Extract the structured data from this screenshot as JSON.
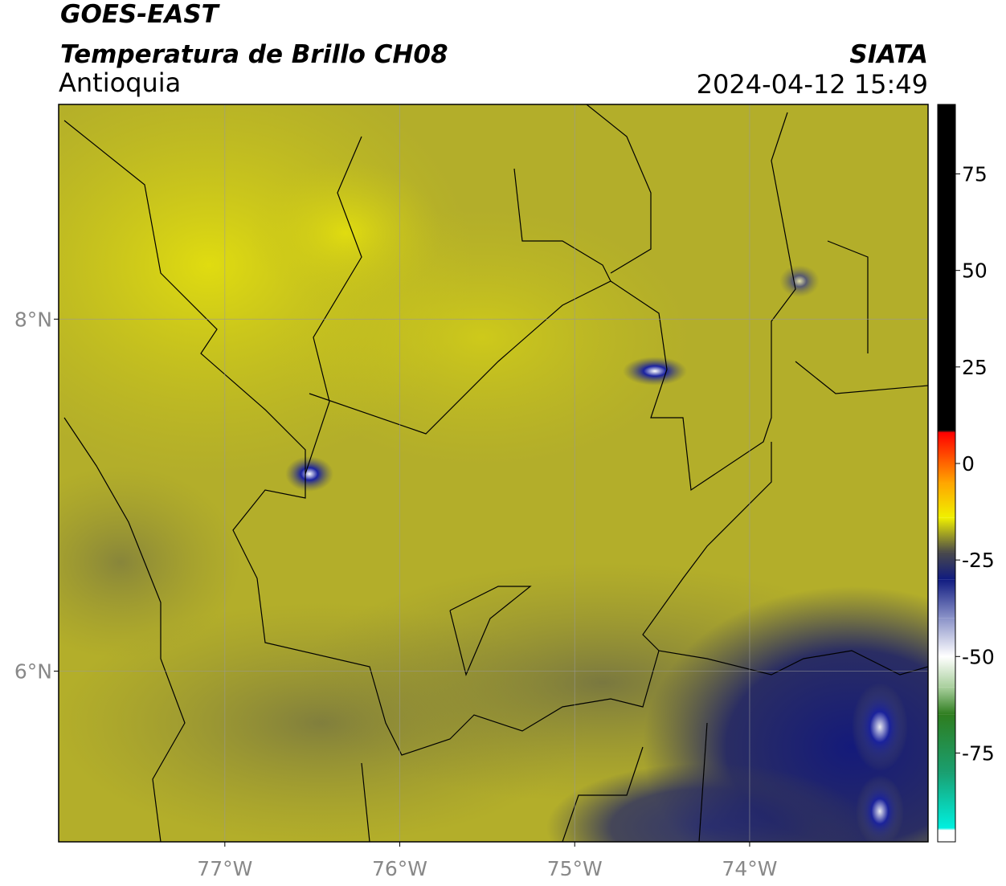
{
  "header": {
    "title": "GOES-EAST",
    "subtitle": "Temperatura de Brillo CH08",
    "region": "Antioquia",
    "source": "SIATA",
    "datetime": "2024-04-12 15:49"
  },
  "map": {
    "xlim": [
      -77.95,
      -72.98
    ],
    "ylim": [
      5.03,
      9.22
    ],
    "xticks": [
      {
        "value": -77,
        "label": "77°W"
      },
      {
        "value": -76,
        "label": "76°W"
      },
      {
        "value": -75,
        "label": "75°W"
      },
      {
        "value": -74,
        "label": "74°W"
      }
    ],
    "yticks": [
      {
        "value": 8,
        "label": "8°N"
      },
      {
        "value": 6,
        "label": "6°N"
      }
    ],
    "grid": true
  },
  "colorbar": {
    "clim": [
      -98,
      93
    ],
    "ticks": [
      75,
      50,
      25,
      0,
      -25,
      -50,
      -75
    ],
    "colormap": [
      {
        "value": -98,
        "color": "#ffffff"
      },
      {
        "value": -95,
        "color": "#ffffff"
      },
      {
        "value": -94.5,
        "color": "#00f0e0"
      },
      {
        "value": -80,
        "color": "#1a9f70"
      },
      {
        "value": -65,
        "color": "#2e7d1f"
      },
      {
        "value": -58,
        "color": "#a8cf9c"
      },
      {
        "value": -50,
        "color": "#ffffff"
      },
      {
        "value": -40,
        "color": "#8a92c8"
      },
      {
        "value": -30,
        "color": "#101b80"
      },
      {
        "value": -23,
        "color": "#4a4a4a"
      },
      {
        "value": -14,
        "color": "#f0f000"
      },
      {
        "value": -5,
        "color": "#ffa500"
      },
      {
        "value": 8,
        "color": "#ff0000"
      },
      {
        "value": 8.5,
        "color": "#000000"
      },
      {
        "value": 93,
        "color": "#000000"
      }
    ]
  }
}
